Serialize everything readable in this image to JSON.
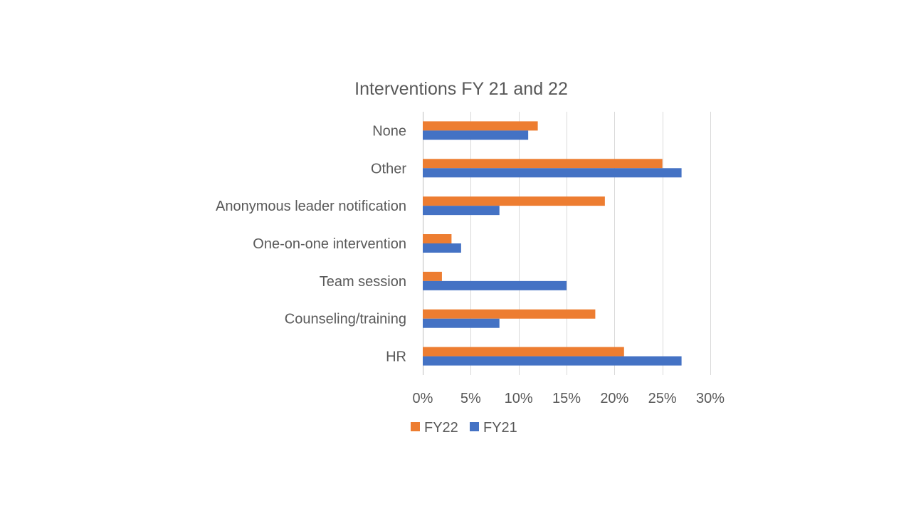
{
  "chart_data": {
    "type": "bar",
    "orientation": "horizontal",
    "title": "Interventions FY 21 and 22",
    "xlabel": "",
    "ylabel": "",
    "categories": [
      "None",
      "Other",
      "Anonymous leader notification",
      "One-on-one intervention",
      "Team session",
      "Counseling/training",
      "HR"
    ],
    "series": [
      {
        "name": "FY22",
        "color": "#ED7D31",
        "values": [
          12,
          25,
          19,
          3,
          2,
          18,
          21
        ]
      },
      {
        "name": "FY21",
        "color": "#4472C4",
        "values": [
          11,
          27,
          8,
          4,
          15,
          8,
          27
        ]
      }
    ],
    "xlim": [
      0,
      30
    ],
    "xticks": [
      0,
      5,
      10,
      15,
      20,
      25,
      30
    ],
    "xtick_labels": [
      "0%",
      "5%",
      "10%",
      "15%",
      "20%",
      "25%",
      "30%"
    ],
    "grid": true,
    "legend_position": "bottom"
  }
}
